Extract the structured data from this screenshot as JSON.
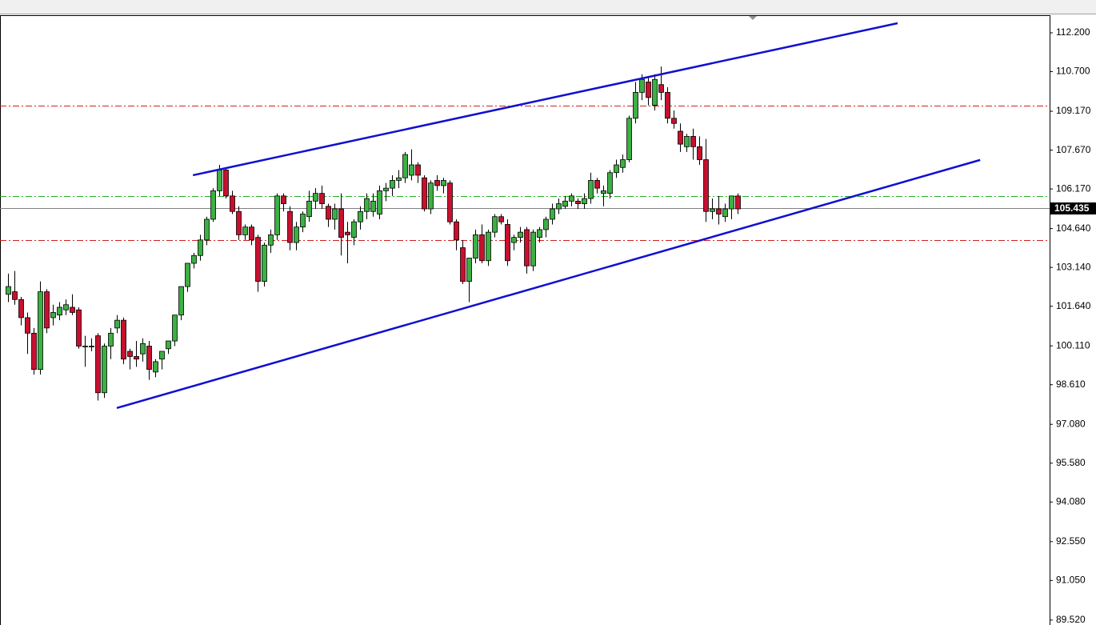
{
  "chart_data": {
    "type": "candlestick",
    "up_color": "#3cb043",
    "down_color": "#c8102e",
    "ylim": [
      89.33,
      112.88
    ],
    "xlim": [
      -1.25,
      162.75
    ],
    "yticks": [
      {
        "value": 112.2,
        "label": "112.200"
      },
      {
        "value": 110.7,
        "label": "110.700"
      },
      {
        "value": 109.17,
        "label": "109.170"
      },
      {
        "value": 107.67,
        "label": "107.670"
      },
      {
        "value": 106.17,
        "label": "106.170"
      },
      {
        "value": 104.64,
        "label": "104.640"
      },
      {
        "value": 103.14,
        "label": "103.140"
      },
      {
        "value": 101.64,
        "label": "101.640"
      },
      {
        "value": 100.11,
        "label": "100.110"
      },
      {
        "value": 98.61,
        "label": "98.610"
      },
      {
        "value": 97.08,
        "label": "97.080"
      },
      {
        "value": 95.58,
        "label": "95.580"
      },
      {
        "value": 94.08,
        "label": "94.080"
      },
      {
        "value": 92.55,
        "label": "92.550"
      },
      {
        "value": 91.05,
        "label": "91.050"
      },
      {
        "value": 89.52,
        "label": "89.520"
      }
    ],
    "current_price": 105.435,
    "level_lines": [
      {
        "value": 109.39,
        "color": "#d42020"
      },
      {
        "value": 105.9,
        "color": "#20b020"
      },
      {
        "value": 104.2,
        "color": "#d42020"
      }
    ],
    "trendlines": [
      {
        "start": [
          28.9,
          106.7
        ],
        "end": [
          139.0,
          112.57
        ],
        "color": "#1010d0"
      },
      {
        "start": [
          17.0,
          97.71
        ],
        "end": [
          151.9,
          107.29
        ],
        "color": "#1010d0"
      }
    ],
    "ohlc": [
      [
        102.1,
        102.9,
        101.8,
        102.4
      ],
      [
        102.2,
        103.0,
        101.7,
        101.9
      ],
      [
        101.9,
        102.0,
        100.9,
        101.2
      ],
      [
        101.2,
        101.4,
        99.8,
        100.6
      ],
      [
        100.6,
        100.8,
        99.0,
        99.2
      ],
      [
        99.2,
        102.6,
        99.0,
        102.2
      ],
      [
        102.2,
        102.3,
        100.6,
        100.8
      ],
      [
        101.2,
        101.7,
        100.9,
        101.4
      ],
      [
        101.3,
        101.8,
        101.1,
        101.6
      ],
      [
        101.5,
        101.9,
        101.3,
        101.7
      ],
      [
        101.6,
        102.1,
        101.3,
        101.4
      ],
      [
        101.5,
        101.6,
        100.0,
        100.1
      ],
      [
        100.1,
        100.5,
        99.3,
        100.1
      ],
      [
        100.1,
        100.4,
        99.9,
        100.1
      ],
      [
        100.5,
        100.6,
        98.0,
        98.3
      ],
      [
        98.3,
        100.2,
        98.1,
        100.1
      ],
      [
        100.1,
        100.8,
        99.6,
        100.6
      ],
      [
        100.8,
        101.3,
        100.6,
        101.1
      ],
      [
        101.1,
        101.2,
        99.4,
        99.6
      ],
      [
        99.9,
        100.0,
        99.2,
        99.7
      ],
      [
        99.7,
        100.3,
        99.3,
        99.6
      ],
      [
        99.8,
        100.4,
        99.5,
        100.2
      ],
      [
        100.1,
        100.3,
        98.8,
        99.2
      ],
      [
        99.1,
        99.6,
        98.9,
        99.5
      ],
      [
        99.6,
        99.9,
        99.2,
        99.9
      ],
      [
        100.0,
        100.3,
        99.8,
        100.3
      ],
      [
        100.3,
        101.3,
        100.1,
        101.3
      ],
      [
        101.3,
        102.4,
        101.1,
        102.4
      ],
      [
        102.4,
        103.3,
        102.2,
        103.3
      ],
      [
        103.3,
        103.7,
        103.1,
        103.6
      ],
      [
        103.6,
        104.4,
        103.4,
        104.2
      ],
      [
        104.2,
        105.1,
        104.0,
        105.0
      ],
      [
        105.0,
        106.2,
        104.9,
        106.1
      ],
      [
        106.1,
        107.1,
        105.9,
        106.9
      ],
      [
        106.9,
        107.0,
        105.8,
        105.9
      ],
      [
        105.9,
        106.1,
        105.2,
        105.3
      ],
      [
        105.3,
        105.5,
        104.2,
        104.4
      ],
      [
        104.4,
        104.8,
        104.2,
        104.7
      ],
      [
        104.7,
        104.8,
        104.0,
        104.2
      ],
      [
        104.3,
        104.4,
        102.2,
        102.6
      ],
      [
        102.6,
        104.1,
        102.4,
        104.0
      ],
      [
        104.0,
        104.6,
        103.7,
        104.4
      ],
      [
        104.4,
        106.0,
        104.2,
        105.9
      ],
      [
        105.9,
        106.0,
        105.3,
        105.6
      ],
      [
        105.3,
        105.5,
        103.8,
        104.1
      ],
      [
        104.1,
        104.9,
        103.8,
        104.7
      ],
      [
        104.7,
        105.3,
        104.5,
        105.2
      ],
      [
        105.1,
        106.1,
        104.9,
        105.7
      ],
      [
        105.7,
        106.2,
        105.4,
        106.0
      ],
      [
        106.0,
        106.3,
        105.4,
        105.6
      ],
      [
        105.5,
        105.6,
        104.7,
        105.0
      ],
      [
        105.0,
        105.6,
        104.6,
        105.4
      ],
      [
        105.4,
        106.0,
        103.6,
        104.3
      ],
      [
        104.5,
        104.9,
        103.3,
        104.4
      ],
      [
        104.3,
        105.0,
        104.0,
        104.9
      ],
      [
        104.9,
        105.5,
        104.6,
        105.3
      ],
      [
        105.3,
        106.0,
        105.0,
        105.8
      ],
      [
        105.3,
        106.0,
        105.1,
        105.7
      ],
      [
        105.2,
        106.3,
        105.0,
        106.1
      ],
      [
        106.1,
        106.4,
        105.7,
        106.2
      ],
      [
        106.2,
        106.7,
        105.9,
        106.5
      ],
      [
        106.5,
        106.9,
        106.2,
        106.6
      ],
      [
        106.6,
        107.6,
        106.4,
        107.5
      ],
      [
        106.7,
        107.7,
        106.5,
        107.1
      ],
      [
        107.1,
        107.2,
        106.4,
        106.7
      ],
      [
        106.6,
        106.7,
        105.3,
        105.4
      ],
      [
        105.4,
        106.5,
        105.2,
        106.4
      ],
      [
        106.5,
        106.7,
        106.1,
        106.3
      ],
      [
        106.3,
        106.6,
        106.0,
        106.5
      ],
      [
        106.4,
        106.5,
        104.8,
        104.9
      ],
      [
        104.9,
        105.0,
        103.8,
        104.2
      ],
      [
        103.9,
        104.2,
        102.5,
        102.6
      ],
      [
        102.6,
        103.5,
        101.8,
        103.5
      ],
      [
        103.5,
        104.6,
        103.3,
        104.4
      ],
      [
        104.4,
        104.8,
        103.3,
        103.4
      ],
      [
        103.4,
        104.6,
        103.2,
        104.5
      ],
      [
        104.5,
        105.2,
        104.3,
        105.1
      ],
      [
        105.1,
        105.2,
        104.8,
        104.9
      ],
      [
        104.8,
        105.0,
        103.2,
        103.4
      ],
      [
        104.1,
        104.4,
        103.8,
        104.3
      ],
      [
        104.3,
        104.7,
        104.1,
        104.5
      ],
      [
        104.6,
        104.7,
        102.9,
        103.2
      ],
      [
        103.2,
        104.6,
        103.0,
        104.5
      ],
      [
        104.3,
        104.7,
        104.1,
        104.6
      ],
      [
        104.6,
        105.1,
        104.3,
        105.0
      ],
      [
        105.0,
        105.6,
        104.8,
        105.4
      ],
      [
        105.4,
        105.8,
        105.2,
        105.6
      ],
      [
        105.5,
        105.9,
        105.4,
        105.7
      ],
      [
        105.7,
        106.0,
        105.5,
        105.9
      ],
      [
        105.7,
        105.8,
        105.4,
        105.6
      ],
      [
        105.6,
        106.0,
        105.4,
        105.8
      ],
      [
        105.8,
        106.8,
        105.6,
        106.5
      ],
      [
        106.5,
        106.6,
        106.0,
        106.2
      ],
      [
        106.0,
        106.3,
        105.5,
        106.1
      ],
      [
        106.0,
        106.9,
        105.8,
        106.8
      ],
      [
        106.8,
        107.3,
        106.6,
        107.1
      ],
      [
        107.0,
        107.5,
        106.8,
        107.3
      ],
      [
        107.3,
        109.0,
        107.2,
        108.9
      ],
      [
        108.9,
        110.3,
        108.7,
        109.9
      ],
      [
        109.9,
        110.6,
        109.6,
        110.4
      ],
      [
        110.3,
        110.5,
        109.4,
        109.7
      ],
      [
        109.4,
        110.6,
        109.2,
        110.4
      ],
      [
        110.2,
        110.9,
        109.6,
        109.9
      ],
      [
        109.9,
        110.1,
        108.7,
        108.9
      ],
      [
        108.9,
        109.2,
        108.5,
        108.7
      ],
      [
        108.4,
        108.7,
        107.6,
        107.9
      ],
      [
        107.8,
        108.3,
        107.6,
        108.2
      ],
      [
        108.2,
        108.5,
        107.3,
        107.8
      ],
      [
        107.8,
        108.2,
        107.1,
        107.3
      ],
      [
        107.3,
        108.1,
        104.9,
        105.3
      ],
      [
        105.3,
        105.8,
        105.0,
        105.4
      ],
      [
        105.4,
        105.9,
        104.8,
        105.2
      ],
      [
        105.1,
        105.6,
        104.9,
        105.4
      ],
      [
        105.4,
        105.9,
        105.0,
        105.9
      ],
      [
        105.9,
        106.0,
        105.2,
        105.4
      ]
    ]
  }
}
